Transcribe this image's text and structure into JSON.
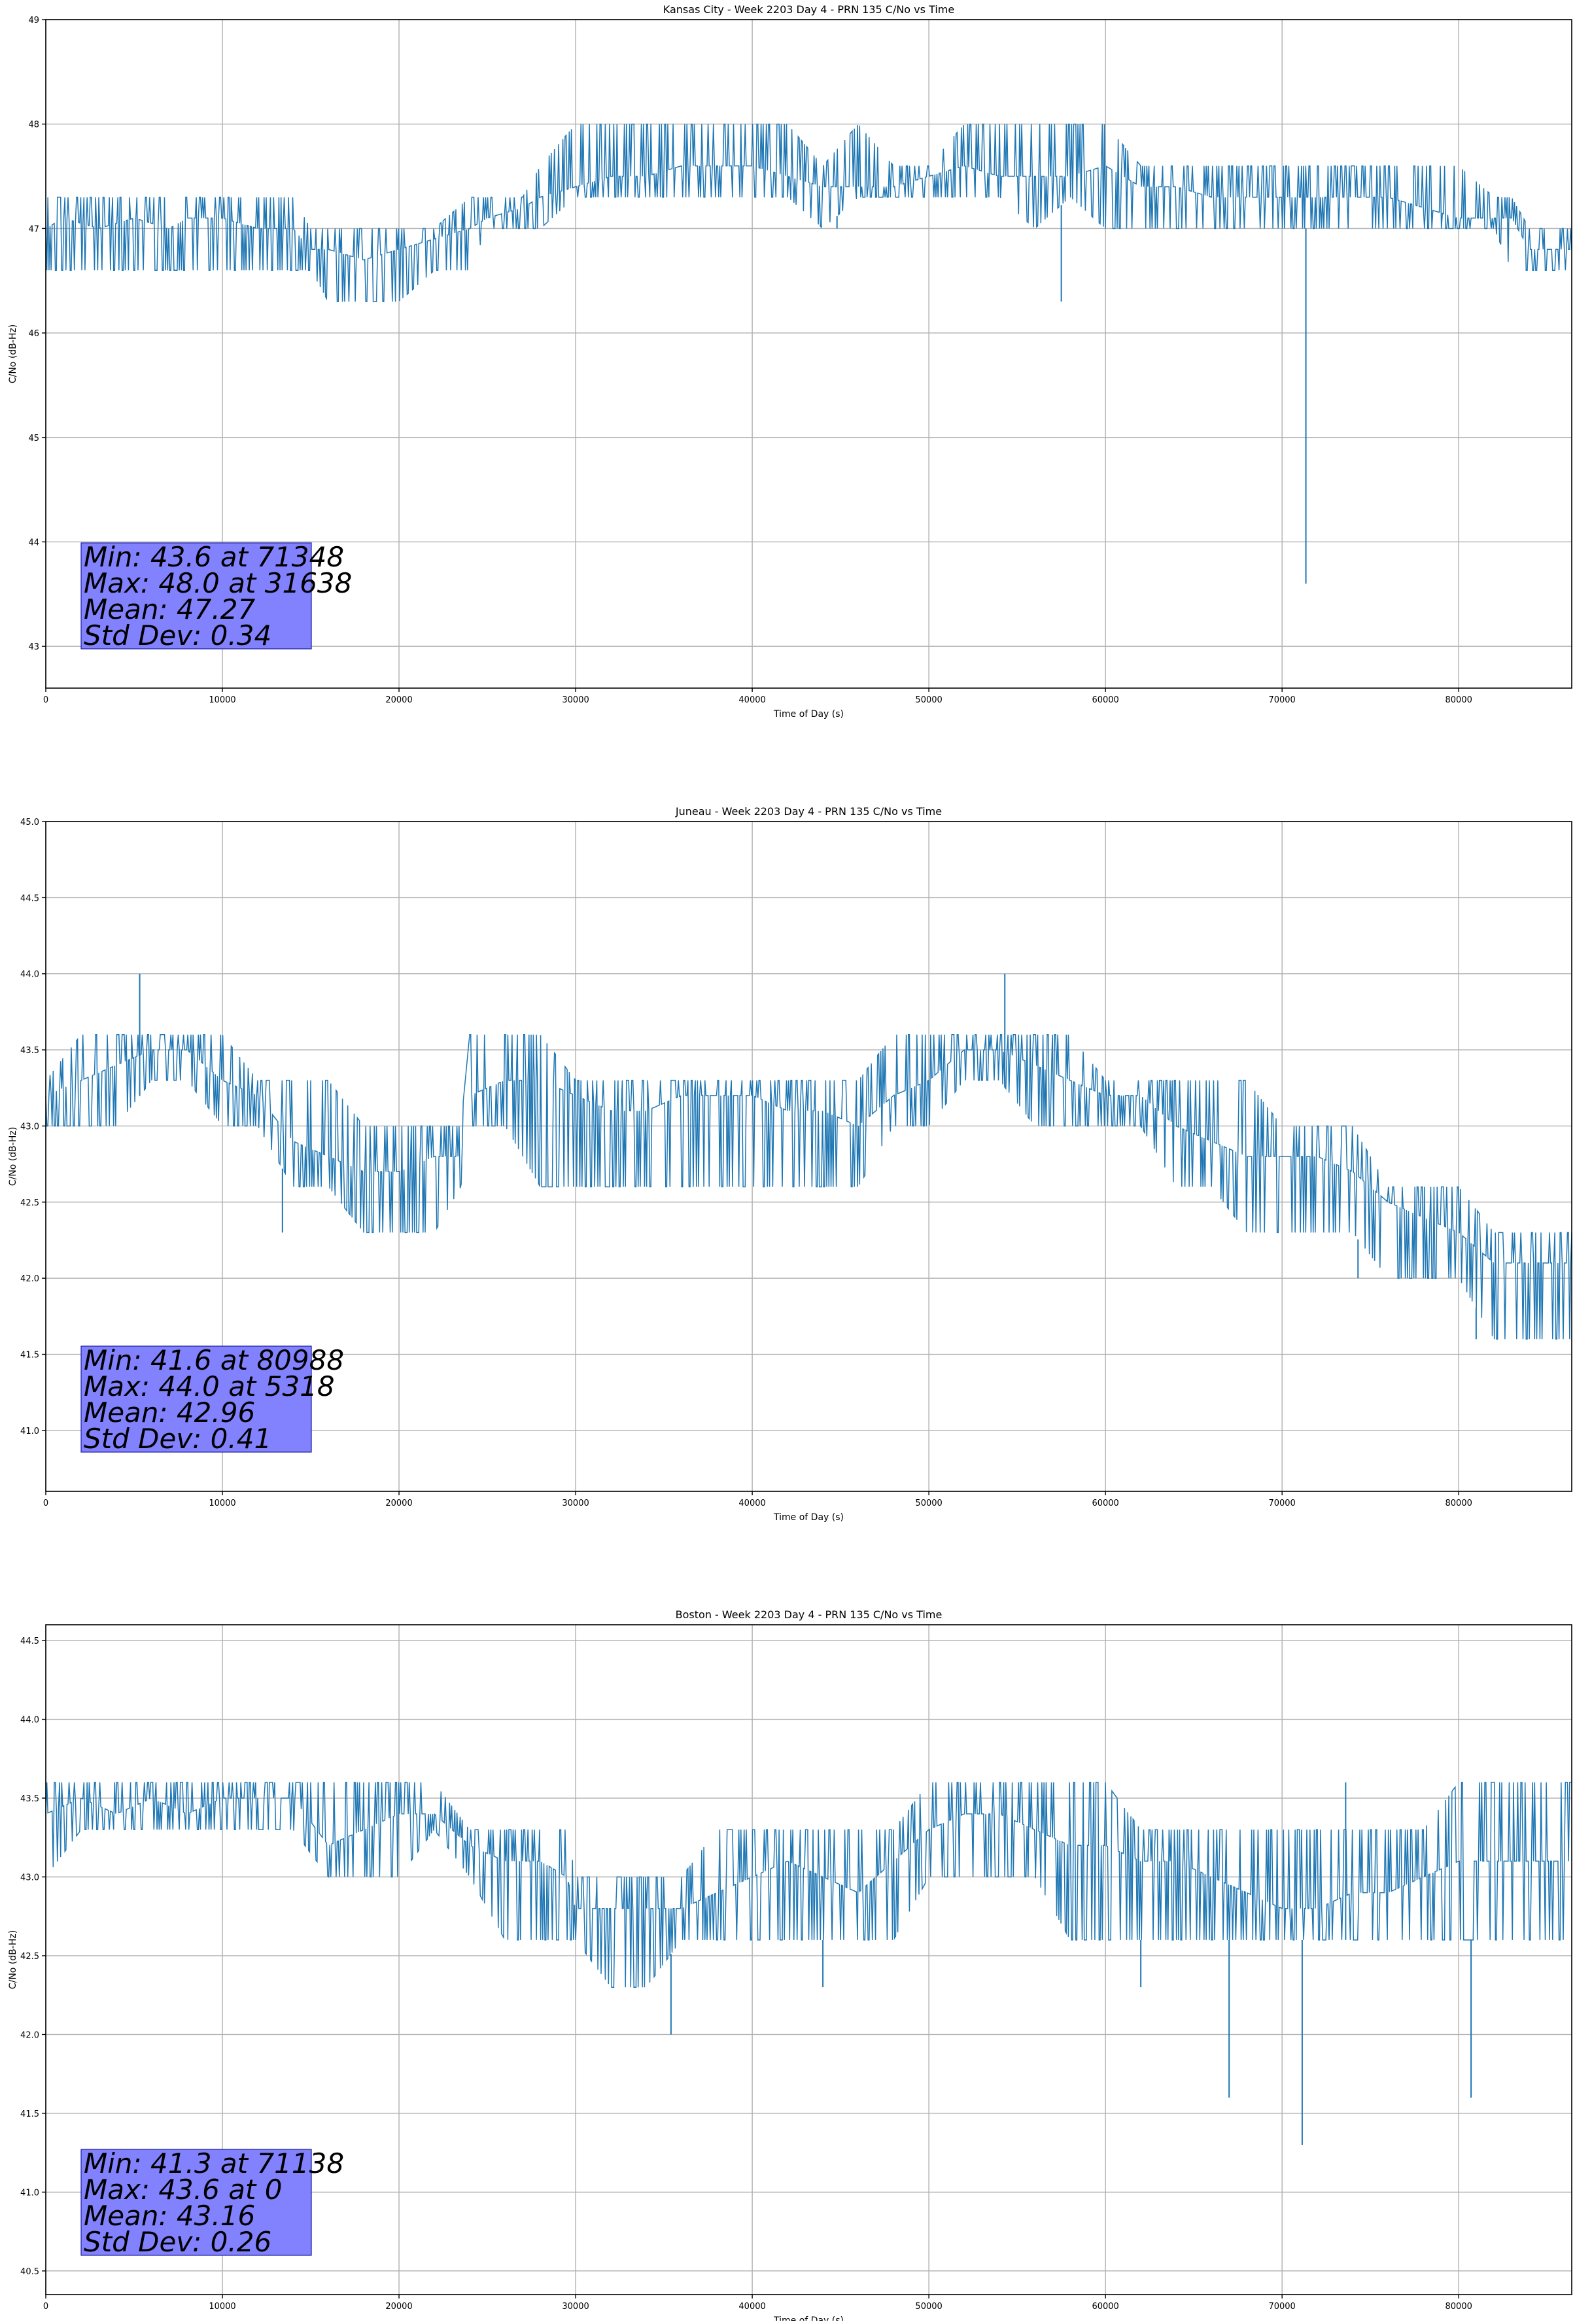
{
  "colors": {
    "series": "#1f77b4",
    "stats_box": "#8080ff",
    "grid": "#b0b0b0"
  },
  "chart_data": [
    {
      "type": "line",
      "title": "Kansas City - Week 2203 Day 4 - PRN 135 C/No vs Time",
      "xlabel": "Time of Day (s)",
      "ylabel": "C/No (dB-Hz)",
      "xlim": [
        0,
        86400
      ],
      "ylim": [
        42.6,
        49
      ],
      "xticks": [
        0,
        10000,
        20000,
        30000,
        40000,
        50000,
        60000,
        70000,
        80000
      ],
      "xtick_labels": [
        "0",
        "10000",
        "20000",
        "30000",
        "40000",
        "50000",
        "60000",
        "70000",
        "80000"
      ],
      "yticks": [
        43,
        44,
        45,
        46,
        47,
        48,
        49
      ],
      "ytick_labels": [
        "43",
        "44",
        "45",
        "46",
        "47",
        "48",
        "49"
      ],
      "grid": true,
      "stats": [
        "Min: 43.6 at 71348",
        "Max: 48.0 at 31638",
        "Mean: 47.27",
        "Std Dev: 0.34"
      ],
      "series": [
        {
          "x": [
            0,
            1000,
            3000,
            5000,
            7000,
            8000,
            10000,
            12000,
            14000,
            15000,
            16000,
            18000,
            20000,
            22000,
            24000,
            25000,
            27000,
            28000,
            30000,
            32000,
            34000,
            36000,
            38000,
            40000,
            42000,
            44000,
            46000,
            48000,
            50000,
            52000,
            54000,
            56000,
            58000,
            60000,
            62000,
            64000,
            66000,
            68000,
            70000,
            72000,
            74000,
            76000,
            78000,
            80000,
            82000,
            83000,
            84000,
            86400
          ],
          "y": [
            47.0,
            47.1,
            47.0,
            47.1,
            47.0,
            47.1,
            47.1,
            47.0,
            47.0,
            46.8,
            46.8,
            46.7,
            46.8,
            46.9,
            47.0,
            47.1,
            47.2,
            47.3,
            47.4,
            47.5,
            47.5,
            47.6,
            47.6,
            47.6,
            47.5,
            47.4,
            47.4,
            47.4,
            47.5,
            47.6,
            47.5,
            47.5,
            47.5,
            47.6,
            47.4,
            47.4,
            47.3,
            47.3,
            47.3,
            47.3,
            47.3,
            47.3,
            47.2,
            47.1,
            47.1,
            47.1,
            46.8,
            46.8
          ],
          "min_band": [
            46.6,
            46.6,
            46.6,
            46.6,
            46.6,
            46.6,
            46.6,
            46.6,
            46.6,
            46.6,
            46.3,
            46.3,
            46.3,
            46.6,
            46.6,
            47.0,
            47.0,
            47.0,
            47.3,
            47.3,
            47.3,
            47.3,
            47.3,
            47.3,
            47.3,
            47.0,
            47.3,
            47.3,
            47.3,
            47.3,
            47.3,
            47.0,
            47.3,
            47.0,
            47.0,
            47.0,
            47.0,
            47.0,
            47.0,
            47.0,
            47.0,
            47.0,
            47.0,
            47.0,
            47.0,
            46.6,
            46.6,
            46.6
          ],
          "max_band": [
            47.3,
            47.3,
            47.3,
            47.3,
            47.3,
            47.3,
            47.3,
            47.3,
            47.3,
            47.0,
            47.0,
            47.0,
            47.0,
            47.0,
            47.3,
            47.3,
            47.3,
            47.6,
            48.0,
            48.0,
            48.0,
            48.0,
            48.0,
            48.0,
            48.0,
            47.6,
            48.0,
            47.6,
            47.6,
            48.0,
            48.0,
            48.0,
            48.0,
            48.0,
            47.6,
            47.6,
            47.6,
            47.6,
            47.6,
            47.6,
            47.6,
            47.6,
            47.6,
            47.6,
            47.3,
            47.3,
            47.0,
            47.0
          ],
          "dips": [
            [
              57500,
              46.3
            ],
            [
              71348,
              43.6
            ],
            [
              44800,
              47.0
            ]
          ]
        }
      ]
    },
    {
      "type": "line",
      "title": "Juneau - Week 2203 Day 4 - PRN 135 C/No vs Time",
      "xlabel": "Time of Day (s)",
      "ylabel": "C/No (dB-Hz)",
      "xlim": [
        0,
        86400
      ],
      "ylim": [
        40.6,
        45.0
      ],
      "xticks": [
        0,
        10000,
        20000,
        30000,
        40000,
        50000,
        60000,
        70000,
        80000
      ],
      "xtick_labels": [
        "0",
        "10000",
        "20000",
        "30000",
        "40000",
        "50000",
        "60000",
        "70000",
        "80000"
      ],
      "yticks": [
        41.0,
        41.5,
        42.0,
        42.5,
        43.0,
        43.5,
        44.0,
        44.5,
        45.0
      ],
      "ytick_labels": [
        "41.0",
        "41.5",
        "42.0",
        "42.5",
        "43.0",
        "43.5",
        "44.0",
        "44.5",
        "45.0"
      ],
      "grid": true,
      "stats": [
        "Min: 41.6 at 80988",
        "Max: 44.0 at 5318",
        "Mean: 42.96",
        "Std Dev: 0.41"
      ],
      "series": [
        {
          "x": [
            0,
            2000,
            4000,
            6000,
            8000,
            10000,
            12000,
            14000,
            16000,
            18000,
            20000,
            22000,
            23500,
            24000,
            26000,
            28000,
            30000,
            32000,
            34000,
            36000,
            38000,
            40000,
            42000,
            44000,
            46000,
            48000,
            50000,
            52000,
            54000,
            56000,
            58000,
            60000,
            62000,
            64000,
            66000,
            68000,
            70000,
            72000,
            74000,
            76000,
            78000,
            80000,
            82000,
            84000,
            86400
          ],
          "y": [
            43.2,
            43.3,
            43.4,
            43.5,
            43.5,
            43.3,
            43.2,
            42.9,
            42.8,
            42.7,
            42.7,
            42.8,
            42.8,
            43.2,
            43.3,
            43.3,
            43.2,
            43.1,
            43.1,
            43.2,
            43.2,
            43.2,
            43.1,
            43.1,
            43.0,
            43.2,
            43.3,
            43.5,
            43.5,
            43.4,
            43.3,
            43.2,
            43.2,
            43.0,
            42.9,
            42.8,
            42.8,
            42.8,
            42.7,
            42.5,
            42.4,
            42.3,
            42.1,
            42.1,
            42.1
          ],
          "min_band": [
            43.0,
            43.0,
            43.0,
            43.3,
            43.3,
            43.0,
            43.0,
            42.6,
            42.6,
            42.3,
            42.3,
            42.3,
            42.6,
            43.0,
            43.0,
            42.6,
            42.6,
            42.6,
            42.6,
            42.6,
            42.6,
            42.6,
            42.6,
            42.6,
            42.6,
            43.0,
            43.0,
            43.3,
            43.3,
            43.0,
            43.0,
            43.0,
            43.0,
            42.6,
            42.6,
            42.3,
            42.3,
            42.3,
            42.3,
            42.0,
            42.0,
            42.0,
            41.6,
            41.6,
            41.6
          ],
          "max_band": [
            43.3,
            43.6,
            43.6,
            43.6,
            43.6,
            43.6,
            43.3,
            43.3,
            43.3,
            43.0,
            43.0,
            43.0,
            43.0,
            43.6,
            43.6,
            43.6,
            43.3,
            43.3,
            43.3,
            43.3,
            43.3,
            43.3,
            43.3,
            43.3,
            43.3,
            43.6,
            43.6,
            43.6,
            43.6,
            43.6,
            43.6,
            43.3,
            43.3,
            43.3,
            43.3,
            43.3,
            43.0,
            43.0,
            43.0,
            42.6,
            42.6,
            42.6,
            42.3,
            42.3,
            42.3
          ],
          "dips": [
            [
              5318,
              44.0
            ],
            [
              54300,
              44.0
            ],
            [
              13400,
              42.3
            ],
            [
              74300,
              42.0
            ],
            [
              80988,
              41.6
            ]
          ]
        }
      ]
    },
    {
      "type": "line",
      "title": "Boston - Week 2203 Day 4 - PRN 135 C/No vs Time",
      "xlabel": "Time of Day (s)",
      "ylabel": "C/No (dB-Hz)",
      "xlim": [
        0,
        86400
      ],
      "ylim": [
        40.35,
        44.6
      ],
      "xticks": [
        0,
        10000,
        20000,
        30000,
        40000,
        50000,
        60000,
        70000,
        80000
      ],
      "xtick_labels": [
        "0",
        "10000",
        "20000",
        "30000",
        "40000",
        "50000",
        "60000",
        "70000",
        "80000"
      ],
      "yticks": [
        40.5,
        41.0,
        41.5,
        42.0,
        42.5,
        43.0,
        43.5,
        44.0,
        44.5
      ],
      "ytick_labels": [
        "40.5",
        "41.0",
        "41.5",
        "42.0",
        "42.5",
        "43.0",
        "43.5",
        "44.0",
        "44.5"
      ],
      "grid": true,
      "stats": [
        "Min: 41.3 at 71138",
        "Max: 43.6 at 0",
        "Mean: 43.16",
        "Std Dev: 0.26"
      ],
      "series": [
        {
          "x": [
            0,
            2000,
            4000,
            6000,
            8000,
            10000,
            12000,
            14000,
            16000,
            18000,
            20000,
            22000,
            24000,
            26000,
            28000,
            29500,
            30000,
            32000,
            34000,
            36000,
            38000,
            40000,
            42000,
            44000,
            46000,
            48000,
            50000,
            52000,
            54000,
            56000,
            58000,
            60000,
            62000,
            64000,
            66000,
            68000,
            70000,
            72000,
            74000,
            76000,
            78000,
            80000,
            82000,
            84000,
            86400
          ],
          "y": [
            43.4,
            43.5,
            43.4,
            43.5,
            43.4,
            43.5,
            43.5,
            43.5,
            43.2,
            43.3,
            43.4,
            43.4,
            43.2,
            43.1,
            43.1,
            43.0,
            42.8,
            42.8,
            42.8,
            42.8,
            42.9,
            43.0,
            43.1,
            43.0,
            42.9,
            43.1,
            43.3,
            43.4,
            43.4,
            43.3,
            43.2,
            43.2,
            43.1,
            43.1,
            43.0,
            42.9,
            42.8,
            42.8,
            42.9,
            42.9,
            43.0,
            43.1,
            43.1,
            43.1,
            43.1
          ],
          "min_band": [
            43.0,
            43.3,
            43.3,
            43.3,
            43.3,
            43.3,
            43.3,
            43.3,
            43.0,
            43.0,
            43.0,
            43.3,
            43.0,
            42.6,
            42.6,
            42.6,
            42.6,
            42.3,
            42.3,
            42.6,
            42.6,
            42.6,
            42.6,
            42.6,
            42.6,
            42.6,
            43.0,
            43.0,
            43.0,
            43.0,
            42.6,
            42.6,
            42.6,
            42.6,
            42.6,
            42.6,
            42.6,
            42.6,
            42.6,
            42.6,
            42.6,
            42.6,
            42.6,
            42.6,
            42.6
          ],
          "max_band": [
            43.6,
            43.6,
            43.6,
            43.6,
            43.6,
            43.6,
            43.6,
            43.6,
            43.6,
            43.6,
            43.6,
            43.6,
            43.3,
            43.3,
            43.3,
            43.3,
            43.0,
            43.0,
            43.0,
            43.0,
            43.3,
            43.3,
            43.3,
            43.3,
            43.3,
            43.3,
            43.6,
            43.6,
            43.6,
            43.6,
            43.6,
            43.6,
            43.3,
            43.3,
            43.3,
            43.3,
            43.3,
            43.3,
            43.3,
            43.3,
            43.3,
            43.6,
            43.6,
            43.6,
            43.6
          ],
          "dips": [
            [
              35400,
              42.0
            ],
            [
              62000,
              42.3
            ],
            [
              67000,
              41.6
            ],
            [
              71138,
              41.3
            ],
            [
              80700,
              41.6
            ],
            [
              26000,
              42.6
            ],
            [
              44000,
              42.3
            ],
            [
              73600,
              43.6
            ]
          ]
        }
      ]
    }
  ]
}
